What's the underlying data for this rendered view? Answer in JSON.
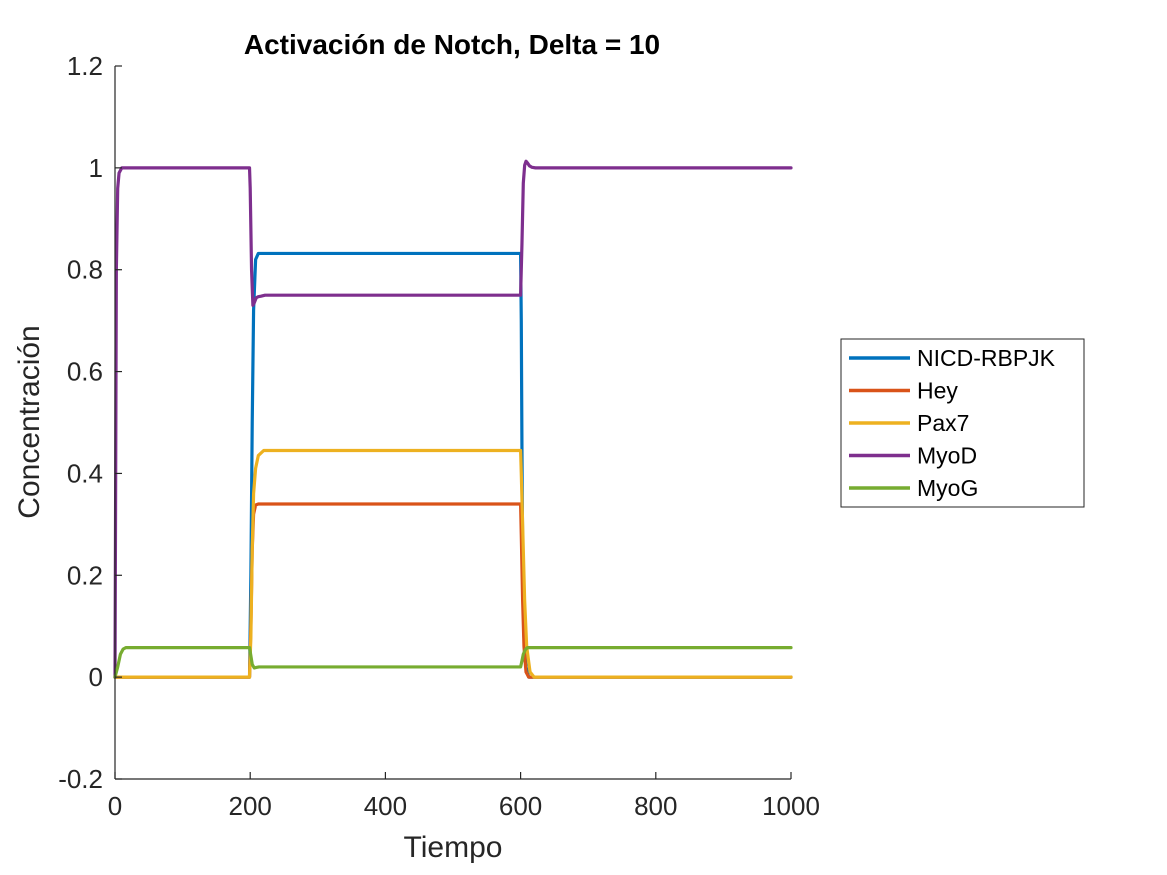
{
  "chart_data": {
    "type": "line",
    "title": "Activación de Notch, Delta = 10",
    "xlabel": "Tiempo",
    "ylabel": "Concentración",
    "xlim": [
      0,
      1000
    ],
    "ylim": [
      -0.2,
      1.2
    ],
    "xticks": [
      0,
      200,
      400,
      600,
      800,
      1000
    ],
    "xtick_labels": [
      "0",
      "200",
      "400",
      "600",
      "800",
      "1000"
    ],
    "yticks": [
      -0.2,
      0,
      0.2,
      0.4,
      0.6,
      0.8,
      1,
      1.2
    ],
    "ytick_labels": [
      "-0.2",
      "0",
      "0.2",
      "0.4",
      "0.6",
      "0.8",
      "1",
      "1.2"
    ],
    "grid": false,
    "legend_position": "outside-right",
    "series": [
      {
        "name": "NICD-RBPJK",
        "color": "#0072BD",
        "x": [
          0,
          199,
          201,
          203,
          205,
          208,
          212,
          600,
          601,
          602,
          603,
          605,
          608,
          612,
          1000
        ],
        "y": [
          0,
          0,
          0.2,
          0.5,
          0.72,
          0.82,
          0.832,
          0.832,
          0.7,
          0.45,
          0.25,
          0.08,
          0.02,
          0,
          0
        ]
      },
      {
        "name": "Hey",
        "color": "#D95319",
        "x": [
          0,
          199,
          201,
          203,
          205,
          208,
          212,
          600,
          601,
          603,
          605,
          608,
          612,
          1000
        ],
        "y": [
          0,
          0,
          0.1,
          0.25,
          0.32,
          0.338,
          0.34,
          0.34,
          0.28,
          0.15,
          0.06,
          0.01,
          0,
          0
        ]
      },
      {
        "name": "Pax7",
        "color": "#EDB120",
        "x": [
          0,
          199,
          201,
          203,
          205,
          208,
          212,
          220,
          600,
          601,
          603,
          606,
          609,
          614,
          620,
          1000
        ],
        "y": [
          0,
          0,
          0.08,
          0.25,
          0.36,
          0.41,
          0.435,
          0.445,
          0.445,
          0.4,
          0.3,
          0.15,
          0.06,
          0.01,
          0,
          0
        ]
      },
      {
        "name": "MyoD",
        "color": "#7E2F8E",
        "x": [
          0,
          1,
          2,
          4,
          6,
          10,
          15,
          199,
          200,
          202,
          204,
          206,
          209,
          212,
          216,
          222,
          600,
          602,
          604,
          606,
          608,
          610,
          613,
          617,
          622,
          630,
          1000
        ],
        "y": [
          0,
          0.4,
          0.8,
          0.96,
          0.99,
          1,
          1,
          1,
          0.96,
          0.8,
          0.73,
          0.735,
          0.745,
          0.747,
          0.748,
          0.75,
          0.75,
          0.85,
          0.97,
          1.005,
          1.013,
          1.01,
          1.004,
          1.001,
          1,
          1,
          1
        ]
      },
      {
        "name": "MyoG",
        "color": "#77AC30",
        "x": [
          0,
          4,
          8,
          12,
          16,
          199,
          200,
          203,
          206,
          209,
          213,
          600,
          602,
          604,
          607,
          610,
          614,
          1000
        ],
        "y": [
          0,
          0.02,
          0.045,
          0.055,
          0.058,
          0.058,
          0.05,
          0.025,
          0.018,
          0.019,
          0.02,
          0.02,
          0.032,
          0.045,
          0.054,
          0.058,
          0.058,
          0.058
        ]
      }
    ]
  }
}
